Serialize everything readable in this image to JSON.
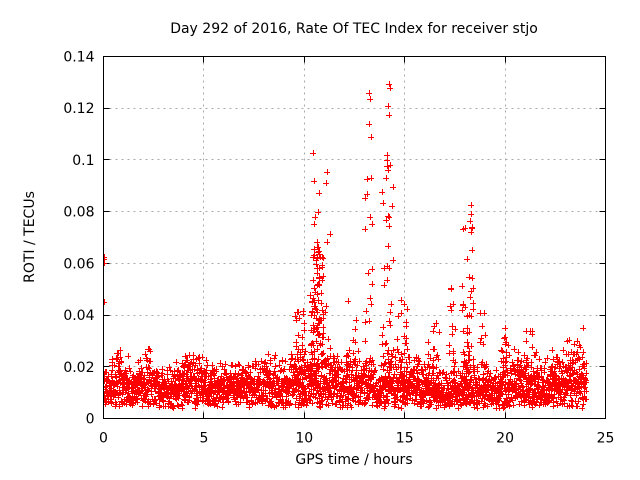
{
  "window": {
    "background": "#ffffff"
  },
  "chart_data": {
    "type": "scatter",
    "title": "Day 292 of 2016, Rate Of TEC Index for receiver stjo",
    "xlabel": "GPS time / hours",
    "ylabel": "ROTI / TECUs",
    "xlim": [
      0,
      25
    ],
    "ylim": [
      0,
      0.14
    ],
    "xticks": [
      0,
      5,
      10,
      15,
      20,
      25
    ],
    "xtick_labels": [
      "0",
      "5",
      "10",
      "15",
      "20",
      "25"
    ],
    "yticks": [
      0,
      0.02,
      0.04,
      0.06,
      0.08,
      0.1,
      0.12,
      0.14
    ],
    "ytick_labels": [
      "0",
      "0.02",
      "0.04",
      "0.06",
      "0.08",
      "0.1",
      "0.12",
      "0.14"
    ],
    "grid": true,
    "legend": "none",
    "marker": {
      "shape": "plus",
      "color": "#ff0000",
      "size": 7,
      "stroke_width": 1
    },
    "style": {
      "border_color": "#000000",
      "grid_color": "#a8a8a8",
      "text_color": "#000000",
      "tick_length": 6,
      "grid_dash": "2,4"
    },
    "series": [
      {
        "name": "ROTI",
        "x_range_observed": [
          0,
          24.05
        ],
        "baseline_band": {
          "n_points": 2880,
          "y_floor": 0.004,
          "y_dense_top": 0.022,
          "envelope_min": 0.018,
          "envelope_max": 0.03,
          "envelope_step_hours": 0.75,
          "excursion_prob": 0.08,
          "excursion_gain": 1.2
        },
        "spike_clusters": [
          {
            "x": 9.85,
            "w": 0.3,
            "y_base": 0.02,
            "y_max": 0.05,
            "n": 26,
            "bias": 2.0
          },
          {
            "x": 10.62,
            "w": 0.33,
            "y_base": 0.02,
            "y_max": 0.068,
            "n": 85,
            "bias": 1.25
          },
          {
            "x": 10.7,
            "w": 0.3,
            "y_base": 0.02,
            "y_max": 0.098,
            "n": 20,
            "bias": 2.0
          },
          {
            "x": 11.15,
            "w": 0.13,
            "y_base": 0.02,
            "y_max": 0.075,
            "n": 8,
            "bias": 1.6
          },
          {
            "x": 12.35,
            "w": 0.25,
            "y_base": 0.02,
            "y_max": 0.046,
            "n": 16,
            "bias": 1.8
          },
          {
            "x": 13.2,
            "w": 0.18,
            "y_base": 0.02,
            "y_max": 0.1,
            "n": 18,
            "bias": 1.5
          },
          {
            "x": 14.15,
            "w": 0.28,
            "y_base": 0.02,
            "y_max": 0.108,
            "n": 34,
            "bias": 1.6
          },
          {
            "x": 14.9,
            "w": 0.3,
            "y_base": 0.02,
            "y_max": 0.048,
            "n": 24,
            "bias": 1.8
          },
          {
            "x": 16.4,
            "w": 0.3,
            "y_base": 0.02,
            "y_max": 0.042,
            "n": 18,
            "bias": 1.8
          },
          {
            "x": 17.35,
            "w": 0.18,
            "y_base": 0.02,
            "y_max": 0.052,
            "n": 16,
            "bias": 1.8
          },
          {
            "x": 18.15,
            "w": 0.28,
            "y_base": 0.02,
            "y_max": 0.075,
            "n": 46,
            "bias": 1.7
          },
          {
            "x": 18.9,
            "w": 0.18,
            "y_base": 0.02,
            "y_max": 0.042,
            "n": 14,
            "bias": 1.5
          },
          {
            "x": 19.95,
            "w": 0.25,
            "y_base": 0.02,
            "y_max": 0.036,
            "n": 14,
            "bias": 1.4
          },
          {
            "x": 21.3,
            "w": 0.3,
            "y_base": 0.02,
            "y_max": 0.034,
            "n": 14,
            "bias": 1.4
          },
          {
            "x": 23.5,
            "w": 0.4,
            "y_base": 0.02,
            "y_max": 0.036,
            "n": 18,
            "bias": 1.4
          }
        ],
        "outlier_points": [
          [
            0.0,
            0.0615
          ],
          [
            0.02,
            0.0625
          ],
          [
            0.01,
            0.06
          ],
          [
            0.0,
            0.045
          ]
        ],
        "peak_points": [
          [
            10.45,
            0.1025
          ],
          [
            10.5,
            0.092
          ],
          [
            11.15,
            0.0955
          ],
          [
            11.1,
            0.091
          ],
          [
            13.2,
            0.126
          ],
          [
            13.25,
            0.1235
          ],
          [
            13.2,
            0.114
          ],
          [
            13.3,
            0.109
          ],
          [
            14.2,
            0.1295
          ],
          [
            14.25,
            0.128
          ],
          [
            14.15,
            0.121
          ],
          [
            14.2,
            0.1175
          ],
          [
            14.1,
            0.102
          ],
          [
            14.25,
            0.098
          ],
          [
            18.3,
            0.0825
          ],
          [
            18.3,
            0.079
          ],
          [
            18.25,
            0.0765
          ],
          [
            18.35,
            0.065
          ]
        ]
      }
    ]
  }
}
